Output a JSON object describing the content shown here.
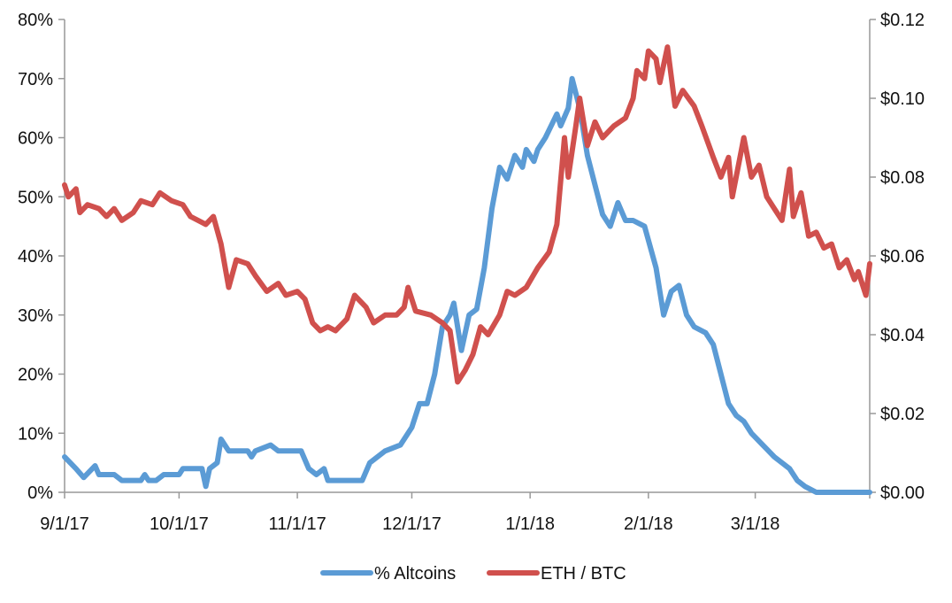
{
  "chart_data": {
    "type": "line",
    "title": "",
    "xlabel": "",
    "x_ticks": [
      "9/1/17",
      "10/1/17",
      "11/1/17",
      "12/1/17",
      "1/1/18",
      "2/1/18",
      "3/1/18"
    ],
    "y_left": {
      "ylim": [
        0,
        80
      ],
      "ticks": [
        "0%",
        "10%",
        "20%",
        "30%",
        "40%",
        "50%",
        "60%",
        "70%",
        "80%"
      ]
    },
    "y_right": {
      "ylim": [
        0,
        0.12
      ],
      "ticks": [
        "$0.00",
        "$0.02",
        "$0.04",
        "$0.06",
        "$0.08",
        "$0.10",
        "$0.12"
      ]
    },
    "x_range": [
      "2017-09-01",
      "2018-03-31"
    ],
    "grid": false,
    "legend_position": "bottom",
    "series": [
      {
        "name": "% Altcoins",
        "axis": "left",
        "color": "#5b9bd5",
        "points": [
          [
            "2017-09-01",
            6
          ],
          [
            "2017-09-04",
            4
          ],
          [
            "2017-09-06",
            2.5
          ],
          [
            "2017-09-09",
            4.5
          ],
          [
            "2017-09-10",
            3
          ],
          [
            "2017-09-14",
            3
          ],
          [
            "2017-09-16",
            2
          ],
          [
            "2017-09-21",
            2
          ],
          [
            "2017-09-22",
            3
          ],
          [
            "2017-09-23",
            2
          ],
          [
            "2017-09-25",
            2
          ],
          [
            "2017-09-27",
            3
          ],
          [
            "2017-10-01",
            3
          ],
          [
            "2017-10-02",
            4
          ],
          [
            "2017-10-07",
            4
          ],
          [
            "2017-10-08",
            1
          ],
          [
            "2017-10-09",
            4
          ],
          [
            "2017-10-11",
            5
          ],
          [
            "2017-10-12",
            9
          ],
          [
            "2017-10-14",
            7
          ],
          [
            "2017-10-19",
            7
          ],
          [
            "2017-10-20",
            6
          ],
          [
            "2017-10-21",
            7
          ],
          [
            "2017-10-25",
            8
          ],
          [
            "2017-10-27",
            7
          ],
          [
            "2017-11-02",
            7
          ],
          [
            "2017-11-04",
            4
          ],
          [
            "2017-11-06",
            3
          ],
          [
            "2017-11-08",
            4
          ],
          [
            "2017-11-09",
            2
          ],
          [
            "2017-11-18",
            2
          ],
          [
            "2017-11-20",
            5
          ],
          [
            "2017-11-24",
            7
          ],
          [
            "2017-11-28",
            8
          ],
          [
            "2017-12-01",
            11
          ],
          [
            "2017-12-03",
            15
          ],
          [
            "2017-12-05",
            15
          ],
          [
            "2017-12-07",
            20
          ],
          [
            "2017-12-09",
            28
          ],
          [
            "2017-12-11",
            30
          ],
          [
            "2017-12-12",
            32
          ],
          [
            "2017-12-14",
            24
          ],
          [
            "2017-12-16",
            30
          ],
          [
            "2017-12-18",
            31
          ],
          [
            "2017-12-20",
            38
          ],
          [
            "2017-12-22",
            48
          ],
          [
            "2017-12-24",
            55
          ],
          [
            "2017-12-26",
            53
          ],
          [
            "2017-12-28",
            57
          ],
          [
            "2017-12-30",
            55
          ],
          [
            "2017-12-31",
            58
          ],
          [
            "2018-01-02",
            56
          ],
          [
            "2018-01-03",
            58
          ],
          [
            "2018-01-05",
            60
          ],
          [
            "2018-01-08",
            64
          ],
          [
            "2018-01-09",
            62
          ],
          [
            "2018-01-11",
            65
          ],
          [
            "2018-01-12",
            70
          ],
          [
            "2018-01-14",
            65
          ],
          [
            "2018-01-16",
            57
          ],
          [
            "2018-01-18",
            52
          ],
          [
            "2018-01-20",
            47
          ],
          [
            "2018-01-22",
            45
          ],
          [
            "2018-01-24",
            49
          ],
          [
            "2018-01-26",
            46
          ],
          [
            "2018-01-28",
            46
          ],
          [
            "2018-01-31",
            45
          ],
          [
            "2018-02-03",
            38
          ],
          [
            "2018-02-05",
            30
          ],
          [
            "2018-02-07",
            34
          ],
          [
            "2018-02-09",
            35
          ],
          [
            "2018-02-11",
            30
          ],
          [
            "2018-02-13",
            28
          ],
          [
            "2018-02-16",
            27
          ],
          [
            "2018-02-18",
            25
          ],
          [
            "2018-02-20",
            20
          ],
          [
            "2018-02-22",
            15
          ],
          [
            "2018-02-24",
            13
          ],
          [
            "2018-02-26",
            12
          ],
          [
            "2018-02-28",
            10
          ],
          [
            "2018-03-03",
            8
          ],
          [
            "2018-03-06",
            6
          ],
          [
            "2018-03-08",
            5
          ],
          [
            "2018-03-10",
            4
          ],
          [
            "2018-03-12",
            2
          ],
          [
            "2018-03-14",
            1
          ],
          [
            "2018-03-17",
            0
          ],
          [
            "2018-03-31",
            0
          ]
        ]
      },
      {
        "name": "ETH / BTC",
        "axis": "right",
        "color": "#d0504d",
        "points": [
          [
            "2017-09-01",
            0.078
          ],
          [
            "2017-09-02",
            0.075
          ],
          [
            "2017-09-04",
            0.077
          ],
          [
            "2017-09-05",
            0.071
          ],
          [
            "2017-09-07",
            0.073
          ],
          [
            "2017-09-10",
            0.072
          ],
          [
            "2017-09-12",
            0.07
          ],
          [
            "2017-09-14",
            0.072
          ],
          [
            "2017-09-16",
            0.069
          ],
          [
            "2017-09-19",
            0.071
          ],
          [
            "2017-09-21",
            0.074
          ],
          [
            "2017-09-24",
            0.073
          ],
          [
            "2017-09-26",
            0.076
          ],
          [
            "2017-09-29",
            0.074
          ],
          [
            "2017-10-02",
            0.073
          ],
          [
            "2017-10-04",
            0.07
          ],
          [
            "2017-10-08",
            0.068
          ],
          [
            "2017-10-10",
            0.07
          ],
          [
            "2017-10-12",
            0.063
          ],
          [
            "2017-10-14",
            0.052
          ],
          [
            "2017-10-16",
            0.059
          ],
          [
            "2017-10-19",
            0.058
          ],
          [
            "2017-10-21",
            0.055
          ],
          [
            "2017-10-24",
            0.051
          ],
          [
            "2017-10-27",
            0.053
          ],
          [
            "2017-10-29",
            0.05
          ],
          [
            "2017-11-01",
            0.051
          ],
          [
            "2017-11-03",
            0.049
          ],
          [
            "2017-11-05",
            0.043
          ],
          [
            "2017-11-07",
            0.041
          ],
          [
            "2017-11-09",
            0.042
          ],
          [
            "2017-11-11",
            0.041
          ],
          [
            "2017-11-14",
            0.044
          ],
          [
            "2017-11-16",
            0.05
          ],
          [
            "2017-11-19",
            0.047
          ],
          [
            "2017-11-21",
            0.043
          ],
          [
            "2017-11-24",
            0.045
          ],
          [
            "2017-11-27",
            0.045
          ],
          [
            "2017-11-29",
            0.047
          ],
          [
            "2017-11-30",
            0.052
          ],
          [
            "2017-12-02",
            0.046
          ],
          [
            "2017-12-06",
            0.045
          ],
          [
            "2017-12-09",
            0.043
          ],
          [
            "2017-12-11",
            0.041
          ],
          [
            "2017-12-13",
            0.028
          ],
          [
            "2017-12-15",
            0.031
          ],
          [
            "2017-12-17",
            0.035
          ],
          [
            "2017-12-19",
            0.042
          ],
          [
            "2017-12-21",
            0.04
          ],
          [
            "2017-12-24",
            0.045
          ],
          [
            "2017-12-26",
            0.051
          ],
          [
            "2017-12-28",
            0.05
          ],
          [
            "2017-12-31",
            0.052
          ],
          [
            "2018-01-03",
            0.057
          ],
          [
            "2018-01-06",
            0.061
          ],
          [
            "2018-01-08",
            0.068
          ],
          [
            "2018-01-10",
            0.09
          ],
          [
            "2018-01-11",
            0.08
          ],
          [
            "2018-01-13",
            0.093
          ],
          [
            "2018-01-14",
            0.1
          ],
          [
            "2018-01-16",
            0.088
          ],
          [
            "2018-01-18",
            0.094
          ],
          [
            "2018-01-20",
            0.09
          ],
          [
            "2018-01-23",
            0.093
          ],
          [
            "2018-01-26",
            0.095
          ],
          [
            "2018-01-28",
            0.1
          ],
          [
            "2018-01-29",
            0.107
          ],
          [
            "2018-01-31",
            0.105
          ],
          [
            "2018-02-01",
            0.112
          ],
          [
            "2018-02-03",
            0.11
          ],
          [
            "2018-02-04",
            0.104
          ],
          [
            "2018-02-06",
            0.113
          ],
          [
            "2018-02-08",
            0.098
          ],
          [
            "2018-02-10",
            0.102
          ],
          [
            "2018-02-13",
            0.098
          ],
          [
            "2018-02-15",
            0.093
          ],
          [
            "2018-02-18",
            0.085
          ],
          [
            "2018-02-20",
            0.08
          ],
          [
            "2018-02-22",
            0.085
          ],
          [
            "2018-02-23",
            0.075
          ],
          [
            "2018-02-26",
            0.09
          ],
          [
            "2018-02-28",
            0.08
          ],
          [
            "2018-03-02",
            0.083
          ],
          [
            "2018-03-04",
            0.075
          ],
          [
            "2018-03-06",
            0.072
          ],
          [
            "2018-03-08",
            0.069
          ],
          [
            "2018-03-10",
            0.082
          ],
          [
            "2018-03-11",
            0.07
          ],
          [
            "2018-03-13",
            0.076
          ],
          [
            "2018-03-15",
            0.065
          ],
          [
            "2018-03-17",
            0.066
          ],
          [
            "2018-03-19",
            0.062
          ],
          [
            "2018-03-21",
            0.063
          ],
          [
            "2018-03-23",
            0.057
          ],
          [
            "2018-03-25",
            0.059
          ],
          [
            "2018-03-27",
            0.054
          ],
          [
            "2018-03-28",
            0.056
          ],
          [
            "2018-03-30",
            0.05
          ],
          [
            "2018-03-31",
            0.058
          ]
        ]
      }
    ]
  }
}
